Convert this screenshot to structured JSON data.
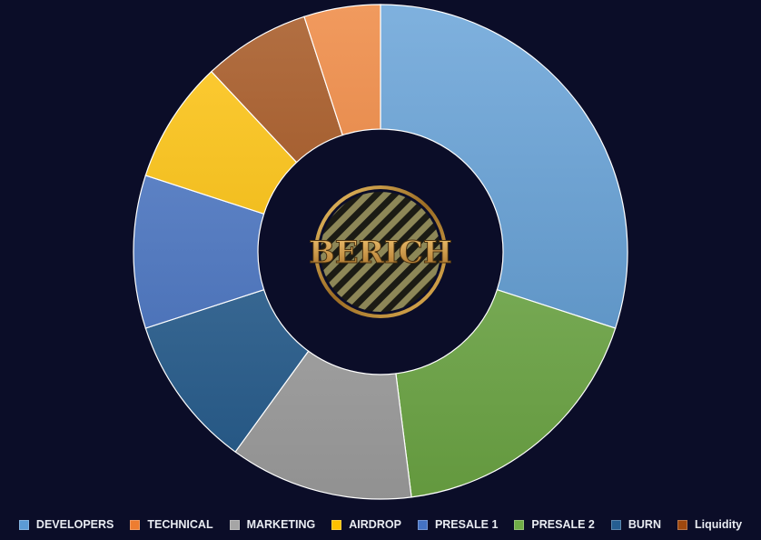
{
  "chart_data": {
    "type": "pie",
    "variant": "donut",
    "categories": [
      "DEVELOPERS",
      "PRESALE 2",
      "MARKETING",
      "BURN",
      "PRESALE 1",
      "AIRDROP",
      "Liquidity",
      "TECHNICAL"
    ],
    "values": [
      30,
      18,
      12,
      10,
      10,
      8,
      7,
      5
    ],
    "colors": [
      "#5b9bd5",
      "#70ad47",
      "#a5a5a5",
      "#255e91",
      "#4472c4",
      "#ffc000",
      "#9e480e",
      "#ed7d31"
    ],
    "legend_position": "bottom",
    "legend": [
      {
        "label": "DEVELOPERS",
        "color": "#5b9bd5"
      },
      {
        "label": "TECHNICAL",
        "color": "#ed7d31"
      },
      {
        "label": "MARKETING",
        "color": "#a5a5a5"
      },
      {
        "label": "AIRDROP",
        "color": "#ffc000"
      },
      {
        "label": "PRESALE 1",
        "color": "#4472c4"
      },
      {
        "label": "PRESALE 2",
        "color": "#70ad47"
      },
      {
        "label": "BURN",
        "color": "#255e91"
      },
      {
        "label": "Liquidity",
        "color": "#9e480e"
      }
    ]
  },
  "logo": {
    "text": "BERICH"
  },
  "colors": {
    "background": "#0b0d28",
    "logo_gold": "#c9973a"
  }
}
